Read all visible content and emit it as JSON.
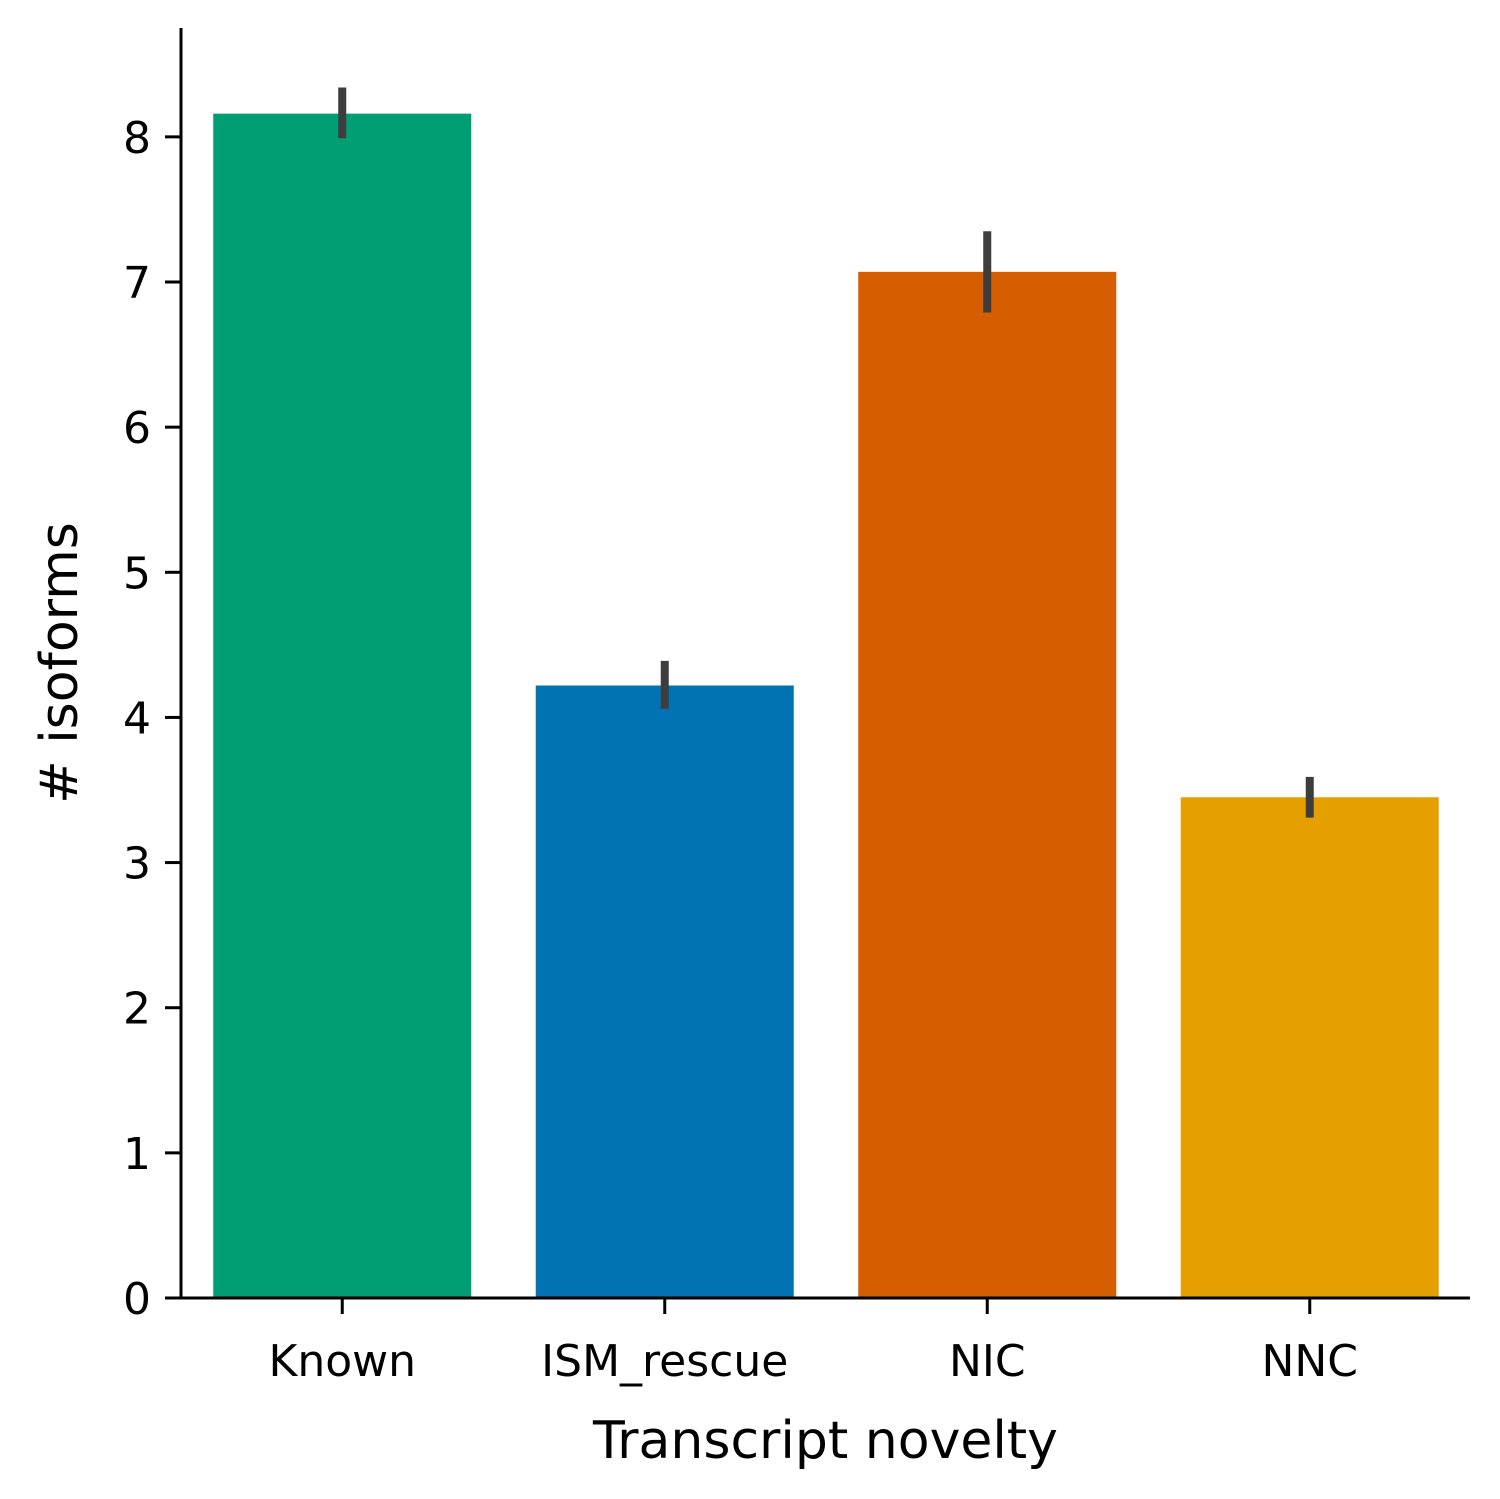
{
  "chart_data": {
    "type": "bar",
    "title": "",
    "xlabel": "Transcript novelty",
    "ylabel": "# isoforms",
    "categories": [
      "Known",
      "ISM_rescue",
      "NIC",
      "NNC"
    ],
    "values": [
      8.16,
      4.22,
      7.07,
      3.45
    ],
    "error_low": [
      7.99,
      4.06,
      6.79,
      3.31
    ],
    "error_high": [
      8.34,
      4.39,
      7.35,
      3.59
    ],
    "colors": [
      "#029e73",
      "#0173b2",
      "#d55e00",
      "#e5a000"
    ],
    "error_color": "#3d3d3d",
    "axis_color": "#000000",
    "ylim": [
      0,
      8.75
    ],
    "yticks": [
      0,
      1,
      2,
      3,
      4,
      5,
      6,
      7,
      8
    ],
    "grid": false,
    "legend": "none"
  }
}
